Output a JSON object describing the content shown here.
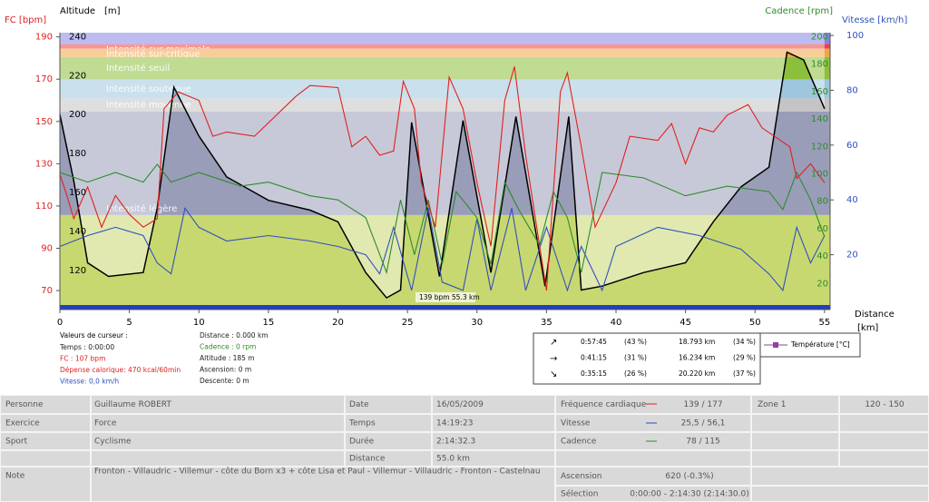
{
  "chart": {
    "axis_titles": {
      "fc": "FC [bpm]",
      "altitude": "Altitude",
      "altitude_unit": "[m]",
      "cadence": "Cadence [rpm]",
      "vitesse": "Vitesse [km/h]",
      "distance": "Distance",
      "distance_unit": "[km]"
    },
    "xlim": [
      0,
      55.4
    ],
    "xticks": [
      0,
      5,
      10,
      15,
      20,
      25,
      30,
      35,
      40,
      45,
      50,
      55
    ],
    "fc": {
      "lim": [
        61,
        192
      ],
      "ticks": [
        70,
        90,
        110,
        130,
        150,
        170,
        190
      ],
      "color": "#e02020"
    },
    "altitude": {
      "lim": [
        100,
        242
      ],
      "ticks": [
        120,
        140,
        160,
        180,
        200,
        220,
        240
      ],
      "color": "#000000"
    },
    "cadence": {
      "lim": [
        1,
        203
      ],
      "ticks": [
        20,
        40,
        60,
        80,
        100,
        120,
        140,
        160,
        180,
        200
      ],
      "color": "#2e8b2e"
    },
    "vitesse": {
      "lim": [
        0,
        101
      ],
      "ticks": [
        20,
        40,
        60,
        80,
        100
      ],
      "color": "#3050c0"
    },
    "zones": [
      {
        "from": 186.6,
        "to": 192,
        "color": "#8585e8"
      },
      {
        "from": 184.4,
        "to": 186.6,
        "color": "#e84444",
        "label": "Intensité sur-maximale"
      },
      {
        "from": 180.5,
        "to": 184.4,
        "color": "#f4a444",
        "label": "Intensité sur-critique"
      },
      {
        "from": 169.8,
        "to": 180.5,
        "color": "#8cbf3a",
        "label": "Intensité seuil"
      },
      {
        "from": 160.8,
        "to": 169.8,
        "color": "#9ec6dc",
        "label": "Intensité soutenue"
      },
      {
        "from": 154.7,
        "to": 160.8,
        "color": "#c4c4c4",
        "label": "Intensité moyenne"
      },
      {
        "from": 105.7,
        "to": 154.7,
        "color": "#9a9db8",
        "label": "Intensité légère"
      },
      {
        "from": 61,
        "to": 105.7,
        "color": "#c8d870"
      }
    ],
    "series": [
      {
        "axis": "altitude",
        "color": "#000000",
        "fill": true,
        "x": [
          0,
          1,
          2,
          3.5,
          6,
          7,
          8.2,
          10,
          12,
          15,
          18,
          20,
          22,
          23.5,
          24.5,
          25.3,
          27.3,
          29,
          31,
          32.8,
          34.9,
          36.6,
          37.5,
          39,
          42,
          45,
          47,
          49,
          51,
          52.3,
          53.5,
          55
        ],
        "values": [
          200,
          166,
          124,
          117,
          119,
          152,
          214,
          189,
          168,
          156,
          151,
          145,
          119,
          106,
          110,
          196,
          117,
          197,
          119,
          199,
          112,
          199,
          110,
          112,
          119,
          124,
          145,
          163,
          173,
          232,
          228,
          203
        ]
      },
      {
        "axis": "vitesse",
        "color": "#3050c0",
        "x": [
          0,
          2,
          4,
          6,
          7,
          8,
          9,
          10,
          12,
          15,
          18,
          20,
          22,
          23,
          24,
          25.3,
          26.5,
          27.5,
          29,
          30,
          31,
          32.5,
          33.5,
          35,
          36.5,
          37.5,
          39,
          40,
          43,
          46,
          49,
          51,
          52,
          53,
          54,
          55
        ],
        "values": [
          23,
          27,
          30,
          27,
          17,
          13,
          37,
          30,
          25,
          27,
          25,
          23,
          20,
          13,
          30,
          7,
          37,
          10,
          7,
          33,
          7,
          37,
          7,
          30,
          7,
          23,
          7,
          23,
          30,
          27,
          22,
          13,
          7,
          30,
          17,
          27
        ]
      },
      {
        "axis": "cadence",
        "color": "#2e8b2e",
        "x": [
          0,
          2,
          4,
          6,
          7,
          8,
          10,
          13,
          15,
          18,
          20,
          22,
          23.5,
          24.5,
          25.5,
          26.5,
          27.5,
          28.5,
          30,
          31,
          32,
          33,
          34.5,
          35.5,
          36.5,
          37.5,
          39,
          42,
          45,
          48,
          51,
          52,
          53,
          54,
          55
        ],
        "values": [
          101,
          94,
          101,
          94,
          107,
          94,
          101,
          91,
          94,
          84,
          81,
          68,
          28,
          81,
          41,
          81,
          34,
          87,
          68,
          34,
          94,
          74,
          48,
          87,
          68,
          28,
          101,
          97,
          84,
          91,
          87,
          74,
          101,
          81,
          54
        ]
      },
      {
        "axis": "fc",
        "color": "#e02020",
        "x": [
          0,
          0.5,
          1,
          2,
          3,
          4,
          5,
          6,
          7,
          7.5,
          8.5,
          10,
          11,
          12,
          14,
          17,
          18,
          20,
          21,
          22,
          23,
          24,
          24.7,
          25.5,
          26,
          27,
          28,
          29,
          30,
          31,
          32,
          32.7,
          33.5,
          35,
          36,
          36.5,
          37.5,
          38.5,
          40,
          41,
          43,
          44,
          45,
          46,
          47,
          48,
          49.5,
          50.5,
          52.5,
          53,
          54,
          55
        ],
        "values": [
          125,
          115,
          104,
          119,
          100,
          115,
          106,
          100,
          104,
          156,
          164,
          160,
          143,
          145,
          143,
          162,
          167,
          166,
          138,
          143,
          134,
          136,
          169,
          156,
          121,
          100,
          171,
          156,
          121,
          91,
          160,
          176,
          134,
          70,
          164,
          173,
          138,
          100,
          121,
          143,
          141,
          149,
          130,
          147,
          145,
          153,
          158,
          147,
          138,
          123,
          130,
          121
        ]
      }
    ],
    "annotation": "139 bpm 55.3 km"
  },
  "cursor": {
    "title": "Valeurs de curseur :",
    "left": [
      "Temps : 0:00:00",
      "FC : 107 bpm",
      "Dépense calorique: 470 kcal/60min",
      "Vitesse: 0,0 km/h"
    ],
    "middle": [
      "Distance : 0.000 km",
      "Cadence : 0 rpm",
      "Altitude : 185 m",
      "Ascension: 0 m",
      "Descente: 0 m"
    ]
  },
  "summary": {
    "rows": [
      [
        "0:57:45",
        "(43 %)",
        "18.793 km",
        "(34 %)"
      ],
      [
        "0:41:15",
        "(31 %)",
        "16.234 km",
        "(29 %)"
      ],
      [
        "0:35:15",
        "(26 %)",
        "20.220 km",
        "(37 %)"
      ]
    ],
    "legend": "Température [°C]"
  },
  "table": {
    "cells": [
      [
        "Personne",
        "Guillaume ROBERT",
        "Date",
        "16/05/2009",
        "Fréquence cardiaque",
        "139 / 177",
        "Zone 1",
        "120 - 150"
      ],
      [
        "Exercice",
        "Force",
        "Temps",
        "14:19:23",
        "Vitesse",
        "25,5 / 56,1"
      ],
      [
        "Sport",
        "Cyclisme",
        "Durée",
        "2:14:32.3",
        "Cadence",
        "78 / 115"
      ],
      [
        "Distance",
        "55.0 km"
      ],
      [
        "Note",
        "Fronton - Villaudric - Villemur - côte du Born x3 + côte Lisa et Paul - Villemur - Villaudric - Fronton - Castelnau",
        "Ascension",
        "620 (-0.3%)"
      ],
      [
        "Sélection",
        "0:00:00 - 2:14:30 (2:14:30.0)"
      ]
    ]
  }
}
